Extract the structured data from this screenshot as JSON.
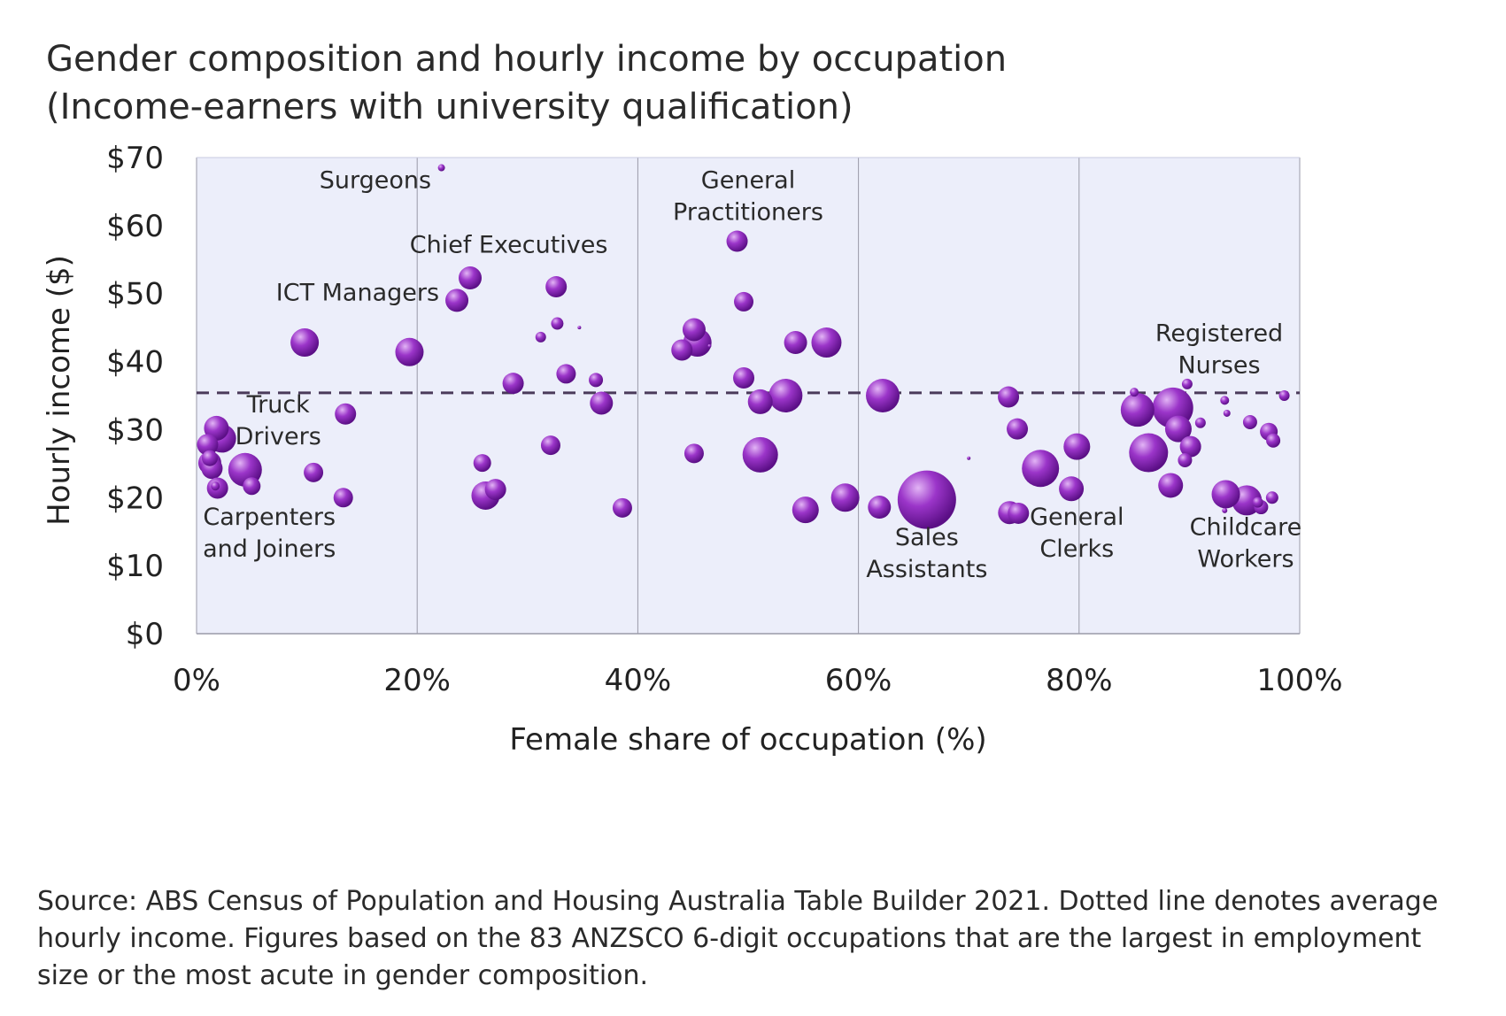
{
  "title": {
    "line1": "Gender composition and hourly income by occupation",
    "line2": "(Income-earners with university qualification)"
  },
  "source_note": "Source: ABS Census of Population and Housing Australia Table Builder 2021. Dotted line denotes average hourly income. Figures based on the 83 ANZSCO 6-digit occupations that are the largest in employment size or the most acute in gender composition.",
  "colors": {
    "plot_background": "#eceefa",
    "bubble": "#9b35c9",
    "bubble_light": "#e2b4f5",
    "bubble_dark": "#5b0f86",
    "average_line": "#4a3a5a",
    "gridline": "#9a9aa8"
  },
  "chart_data": {
    "type": "scatter",
    "title": "Gender composition and hourly income by occupation (Income-earners with university qualification)",
    "xlabel": "Female share of occupation (%)",
    "ylabel": "Hourly income ($)",
    "xlim": [
      0,
      100
    ],
    "ylim": [
      0,
      70
    ],
    "x_ticks": [
      0,
      20,
      40,
      60,
      80,
      100
    ],
    "x_tick_labels": [
      "0%",
      "20%",
      "40%",
      "60%",
      "80%",
      "100%"
    ],
    "y_ticks": [
      0,
      10,
      20,
      30,
      40,
      50,
      60,
      70
    ],
    "y_tick_labels": [
      "$0",
      "$10",
      "$20",
      "$30",
      "$40",
      "$50",
      "$60",
      "$70"
    ],
    "grid": "vertical",
    "legend": "none",
    "average_hourly_income": 35.4,
    "annotations": [
      {
        "lines": [
          "Surgeons"
        ],
        "x": 16.2,
        "y": 65.5
      },
      {
        "lines": [
          "General",
          "Practitioners"
        ],
        "x": 50,
        "y": 65.5
      },
      {
        "lines": [
          "Chief Executives"
        ],
        "x": 28.3,
        "y": 56.0
      },
      {
        "lines": [
          "ICT Managers"
        ],
        "x": 14.6,
        "y": 49.0
      },
      {
        "lines": [
          "Registered",
          "Nurses"
        ],
        "x": 92.7,
        "y": 43.0
      },
      {
        "lines": [
          "Truck",
          "Drivers"
        ],
        "x": 7.4,
        "y": 32.5
      },
      {
        "lines": [
          "Carpenters",
          "and Joiners"
        ],
        "x": 6.6,
        "y": 16.0
      },
      {
        "lines": [
          "Sales",
          "Assistants"
        ],
        "x": 66.2,
        "y": 13.0
      },
      {
        "lines": [
          "General",
          "Clerks"
        ],
        "x": 79.8,
        "y": 16.0
      },
      {
        "lines": [
          "Childcare",
          "Workers"
        ],
        "x": 95.1,
        "y": 14.5
      }
    ],
    "series": [
      {
        "points": [
          {
            "x": 22.2,
            "y": 68.5,
            "size": 4
          },
          {
            "x": 49.0,
            "y": 57.7,
            "size": 12
          },
          {
            "x": 24.8,
            "y": 52.3,
            "size": 13
          },
          {
            "x": 32.6,
            "y": 51.0,
            "size": 12
          },
          {
            "x": 23.6,
            "y": 49.0,
            "size": 13
          },
          {
            "x": 49.6,
            "y": 48.8,
            "size": 11
          },
          {
            "x": 32.7,
            "y": 45.6,
            "size": 7
          },
          {
            "x": 34.7,
            "y": 45.0,
            "size": 2
          },
          {
            "x": 31.2,
            "y": 43.6,
            "size": 6
          },
          {
            "x": 45.1,
            "y": 44.7,
            "size": 13
          },
          {
            "x": 45.4,
            "y": 42.8,
            "size": 16
          },
          {
            "x": 44.0,
            "y": 41.7,
            "size": 12
          },
          {
            "x": 46.5,
            "y": 42.3,
            "size": 2
          },
          {
            "x": 9.8,
            "y": 42.8,
            "size": 16
          },
          {
            "x": 54.3,
            "y": 42.8,
            "size": 13
          },
          {
            "x": 57.1,
            "y": 42.8,
            "size": 17
          },
          {
            "x": 19.3,
            "y": 41.4,
            "size": 16
          },
          {
            "x": 33.5,
            "y": 38.2,
            "size": 11
          },
          {
            "x": 49.6,
            "y": 37.6,
            "size": 12
          },
          {
            "x": 36.2,
            "y": 37.3,
            "size": 8
          },
          {
            "x": 28.7,
            "y": 36.8,
            "size": 12
          },
          {
            "x": 53.4,
            "y": 35.0,
            "size": 19
          },
          {
            "x": 62.2,
            "y": 35.0,
            "size": 19
          },
          {
            "x": 73.6,
            "y": 34.8,
            "size": 12
          },
          {
            "x": 85.0,
            "y": 35.5,
            "size": 5
          },
          {
            "x": 89.8,
            "y": 36.7,
            "size": 6
          },
          {
            "x": 98.6,
            "y": 35.0,
            "size": 6
          },
          {
            "x": 51.1,
            "y": 34.1,
            "size": 14
          },
          {
            "x": 36.7,
            "y": 33.9,
            "size": 13
          },
          {
            "x": 93.2,
            "y": 34.3,
            "size": 5
          },
          {
            "x": 85.3,
            "y": 32.9,
            "size": 19
          },
          {
            "x": 88.5,
            "y": 33.2,
            "size": 23
          },
          {
            "x": 93.4,
            "y": 32.4,
            "size": 4
          },
          {
            "x": 13.5,
            "y": 32.3,
            "size": 12
          },
          {
            "x": 91.0,
            "y": 31.0,
            "size": 6
          },
          {
            "x": 1.8,
            "y": 30.2,
            "size": 14
          },
          {
            "x": 95.5,
            "y": 31.1,
            "size": 8
          },
          {
            "x": 74.4,
            "y": 30.1,
            "size": 12
          },
          {
            "x": 89.0,
            "y": 30.1,
            "size": 15
          },
          {
            "x": 97.2,
            "y": 29.7,
            "size": 10
          },
          {
            "x": 2.3,
            "y": 28.7,
            "size": 16
          },
          {
            "x": 97.6,
            "y": 28.4,
            "size": 8
          },
          {
            "x": 1.0,
            "y": 27.8,
            "size": 12
          },
          {
            "x": 90.1,
            "y": 27.5,
            "size": 12
          },
          {
            "x": 32.1,
            "y": 27.7,
            "size": 11
          },
          {
            "x": 79.8,
            "y": 27.5,
            "size": 15
          },
          {
            "x": 86.3,
            "y": 26.6,
            "size": 22
          },
          {
            "x": 51.1,
            "y": 26.3,
            "size": 20
          },
          {
            "x": 45.1,
            "y": 26.5,
            "size": 11
          },
          {
            "x": 1.2,
            "y": 25.8,
            "size": 9
          },
          {
            "x": 70.0,
            "y": 25.8,
            "size": 2
          },
          {
            "x": 89.6,
            "y": 25.5,
            "size": 8
          },
          {
            "x": 1.2,
            "y": 25.1,
            "size": 13
          },
          {
            "x": 25.9,
            "y": 25.1,
            "size": 10
          },
          {
            "x": 1.4,
            "y": 24.3,
            "size": 12
          },
          {
            "x": 4.4,
            "y": 24.1,
            "size": 19
          },
          {
            "x": 76.5,
            "y": 24.3,
            "size": 21
          },
          {
            "x": 10.6,
            "y": 23.7,
            "size": 11
          },
          {
            "x": 88.3,
            "y": 21.8,
            "size": 14
          },
          {
            "x": 5.0,
            "y": 21.7,
            "size": 10
          },
          {
            "x": 27.1,
            "y": 21.2,
            "size": 12
          },
          {
            "x": 79.3,
            "y": 21.3,
            "size": 14
          },
          {
            "x": 1.7,
            "y": 21.7,
            "size": 5
          },
          {
            "x": 1.9,
            "y": 21.4,
            "size": 12
          },
          {
            "x": 26.2,
            "y": 20.3,
            "size": 16
          },
          {
            "x": 93.3,
            "y": 20.5,
            "size": 16
          },
          {
            "x": 58.8,
            "y": 20.0,
            "size": 16
          },
          {
            "x": 13.3,
            "y": 20.0,
            "size": 11
          },
          {
            "x": 66.2,
            "y": 19.7,
            "size": 33
          },
          {
            "x": 95.2,
            "y": 19.6,
            "size": 17
          },
          {
            "x": 97.5,
            "y": 20.0,
            "size": 7
          },
          {
            "x": 96.2,
            "y": 19.3,
            "size": 6
          },
          {
            "x": 96.5,
            "y": 18.6,
            "size": 8
          },
          {
            "x": 38.6,
            "y": 18.5,
            "size": 11
          },
          {
            "x": 61.9,
            "y": 18.6,
            "size": 13
          },
          {
            "x": 55.2,
            "y": 18.2,
            "size": 15
          },
          {
            "x": 73.7,
            "y": 17.8,
            "size": 13
          },
          {
            "x": 74.5,
            "y": 17.7,
            "size": 12
          },
          {
            "x": 93.2,
            "y": 18.1,
            "size": 3
          }
        ]
      }
    ]
  }
}
